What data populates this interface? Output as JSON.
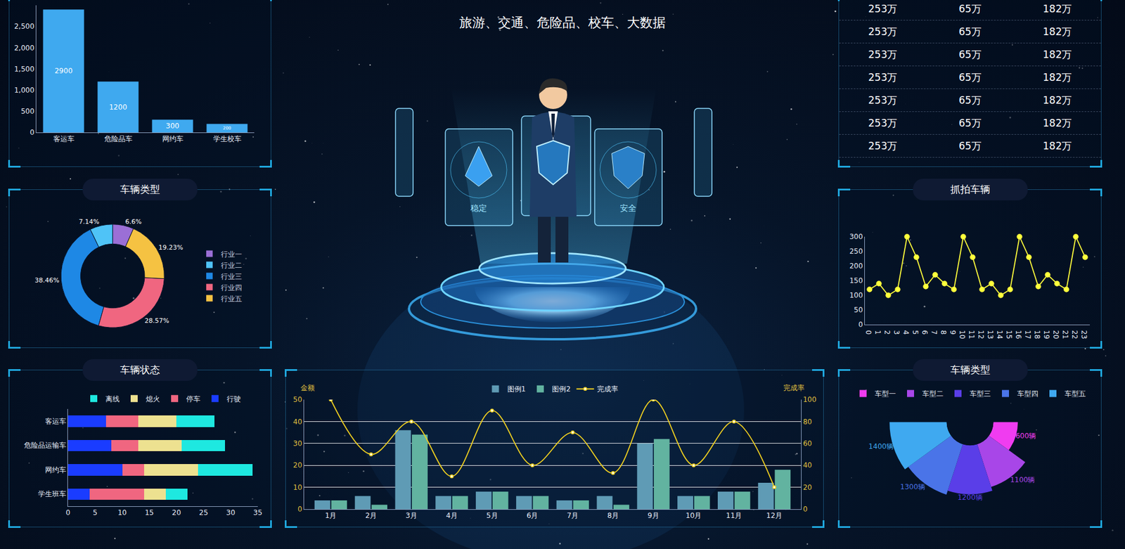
{
  "header": {
    "subtitle": "旅游、交通、危险品、校车、大数据"
  },
  "illustration": {
    "labels": [
      "稳定",
      "安全"
    ]
  },
  "table": {
    "rows": [
      [
        "253万",
        "65万",
        "182万"
      ],
      [
        "253万",
        "65万",
        "182万"
      ],
      [
        "253万",
        "65万",
        "182万"
      ],
      [
        "253万",
        "65万",
        "182万"
      ],
      [
        "253万",
        "65万",
        "182万"
      ],
      [
        "253万",
        "65万",
        "182万"
      ],
      [
        "253万",
        "65万",
        "182万"
      ]
    ]
  },
  "chart_data": [
    {
      "type": "bar",
      "categories": [
        "客运车",
        "危险品车",
        "网约车",
        "学生校车"
      ],
      "values": [
        2900,
        1200,
        300,
        200
      ],
      "color": "#3fa9ef",
      "ylim": [
        0,
        3000
      ],
      "yticks": [
        0,
        500,
        {
          "value": 1000,
          "label": "1,000"
        },
        {
          "value": 1500,
          "label": "1,500"
        },
        {
          "value": 2000,
          "label": "2,000"
        },
        {
          "value": 2500,
          "label": "2,500"
        }
      ],
      "data_labels": true,
      "grid": false
    },
    {
      "type": "donut",
      "title": "车辆类型",
      "categories": [
        "行业一",
        "行业二",
        "行业三",
        "行业四",
        "行业五"
      ],
      "values": [
        6.6,
        7.14,
        38.46,
        28.57,
        19.23
      ],
      "value_labels": [
        "6.6%",
        "7.14%",
        "38.46%",
        "28.57%",
        "19.23%"
      ],
      "colors": [
        "#9b6fd6",
        "#4fc3f7",
        "#1e88e5",
        "#f06680",
        "#f5c242"
      ],
      "legend": "right",
      "data_labels": true
    },
    {
      "type": "bar",
      "title": "车辆状态",
      "orientation": "horizontal",
      "stacked": true,
      "categories": [
        "客运车",
        "危险品运输车",
        "网约车",
        "学生班车"
      ],
      "series": [
        {
          "name": "行驶",
          "color": "#1a3cff",
          "values": [
            7,
            8,
            10,
            4
          ]
        },
        {
          "name": "停车",
          "color": "#f06680",
          "values": [
            6,
            5,
            4,
            10
          ]
        },
        {
          "name": "熄火",
          "color": "#ede190",
          "values": [
            7,
            8,
            10,
            4
          ]
        },
        {
          "name": "离线",
          "color": "#1ee8e0",
          "values": [
            7,
            8,
            10,
            4
          ]
        }
      ],
      "xlim": [
        0,
        35
      ],
      "xticks": [
        0,
        5,
        10,
        15,
        20,
        25,
        30,
        35
      ],
      "legend": "top",
      "grid": false
    },
    {
      "type": "bar",
      "categories": [
        "1月",
        "2月",
        "3月",
        "4月",
        "5月",
        "6月",
        "7月",
        "8月",
        "9月",
        "10月",
        "11月",
        "12月"
      ],
      "series": [
        {
          "name": "图例1",
          "type": "bar",
          "color": "#5f9bb5",
          "values": [
            4,
            6,
            36,
            6,
            8,
            6,
            4,
            6,
            30,
            6,
            8,
            12
          ]
        },
        {
          "name": "图例2",
          "type": "bar",
          "color": "#62b3a0",
          "values": [
            4,
            2,
            34,
            6,
            8,
            6,
            4,
            2,
            32,
            6,
            8,
            18
          ]
        },
        {
          "name": "完成率",
          "type": "line",
          "axis": "y2",
          "color": "#f0d020",
          "line_style": "spline",
          "marker": "circle",
          "values": [
            100,
            50,
            80,
            30,
            90,
            40,
            70,
            33,
            100,
            40,
            80,
            20
          ]
        }
      ],
      "ylabel": "金额",
      "y2label": "完成率",
      "ylim": [
        0,
        50
      ],
      "yticks": [
        0,
        10,
        20,
        30,
        40,
        50
      ],
      "y2lim": [
        0,
        100
      ],
      "y2ticks": [
        0,
        20,
        40,
        60,
        80,
        100
      ],
      "legend": "top",
      "grid": true
    },
    {
      "type": "line",
      "title": "抓拍车辆",
      "x": [
        0,
        1,
        2,
        3,
        4,
        5,
        6,
        7,
        8,
        9,
        10,
        11,
        12,
        13,
        14,
        15,
        16,
        17,
        18,
        19,
        20,
        21,
        22,
        23
      ],
      "values": [
        120,
        140,
        100,
        120,
        300,
        230,
        130,
        170,
        140,
        120,
        300,
        230,
        120,
        140,
        100,
        120,
        300,
        230,
        130,
        170,
        140,
        120,
        300,
        230
      ],
      "color": "#ffff3c",
      "marker": "circle",
      "line_style": "solid",
      "xlim": [
        -0.5,
        23.5
      ],
      "xticks": [
        0,
        1,
        2,
        3,
        4,
        5,
        6,
        7,
        8,
        9,
        10,
        11,
        12,
        13,
        14,
        15,
        16,
        17,
        18,
        19,
        20,
        21,
        22,
        23
      ],
      "ylim": [
        0,
        300
      ],
      "yticks": [
        0,
        50,
        100,
        150,
        200,
        250,
        300
      ],
      "grid": false
    },
    {
      "type": "rose",
      "title": "车辆类型",
      "categories": [
        "车型一",
        "车型二",
        "车型三",
        "车型四",
        "车型五"
      ],
      "values": [
        600,
        1100,
        1200,
        1300,
        1400
      ],
      "value_labels": [
        "600辆",
        "1100辆",
        "1200辆",
        "1300辆",
        "1400辆"
      ],
      "colors": [
        "#f03cf0",
        "#a846e8",
        "#5a3ee8",
        "#4a74e8",
        "#3fa9f0"
      ],
      "legend": "top",
      "data_labels": true,
      "tick_labels": false
    }
  ]
}
